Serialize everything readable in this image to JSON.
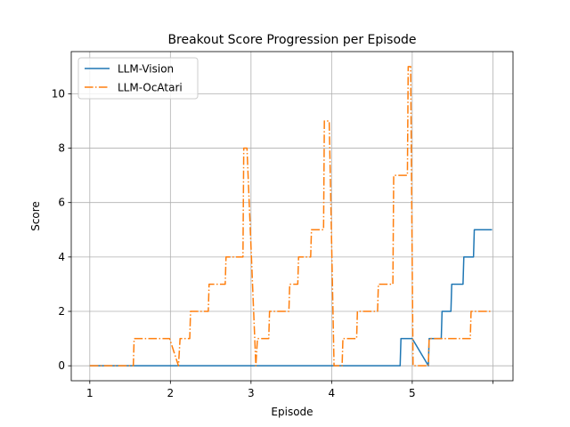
{
  "chart_data": {
    "type": "line",
    "title": "Breakout Score Progression per Episode",
    "xlabel": "Episode",
    "ylabel": "Score",
    "xlim": [
      0.77,
      6.25
    ],
    "ylim": [
      -0.55,
      11.55
    ],
    "x_ticks": [
      1,
      2,
      3,
      4,
      5,
      6
    ],
    "x_tick_labels": [
      "1",
      "2",
      "3",
      "4",
      "5",
      ""
    ],
    "y_ticks": [
      0,
      2,
      4,
      6,
      8,
      10
    ],
    "grid": true,
    "legend_position": "top-left",
    "series": [
      {
        "name": "LLM-Vision",
        "color": "#1f77b4",
        "style": "solid",
        "points": [
          [
            1.0,
            0
          ],
          [
            4.0,
            0
          ],
          [
            4.05,
            0
          ],
          [
            4.85,
            0
          ],
          [
            4.86,
            1
          ],
          [
            5.0,
            1
          ],
          [
            5.2,
            0
          ],
          [
            5.21,
            1
          ],
          [
            5.36,
            1
          ],
          [
            5.37,
            2
          ],
          [
            5.48,
            2
          ],
          [
            5.49,
            3
          ],
          [
            5.63,
            3
          ],
          [
            5.64,
            4
          ],
          [
            5.76,
            4
          ],
          [
            5.77,
            5
          ],
          [
            5.99,
            5
          ]
        ]
      },
      {
        "name": "LLM-OcAtari",
        "color": "#ff7f0e",
        "style": "dashdot",
        "points": [
          [
            1.0,
            0
          ],
          [
            1.54,
            0
          ],
          [
            1.55,
            1
          ],
          [
            1.99,
            1
          ],
          [
            2.1,
            0
          ],
          [
            2.12,
            1
          ],
          [
            2.24,
            1
          ],
          [
            2.25,
            2
          ],
          [
            2.47,
            2
          ],
          [
            2.48,
            3
          ],
          [
            2.68,
            3
          ],
          [
            2.69,
            4
          ],
          [
            2.9,
            4
          ],
          [
            2.91,
            8
          ],
          [
            2.95,
            8
          ],
          [
            3.06,
            0
          ],
          [
            3.08,
            1
          ],
          [
            3.22,
            1
          ],
          [
            3.23,
            2
          ],
          [
            3.47,
            2
          ],
          [
            3.48,
            3
          ],
          [
            3.58,
            3
          ],
          [
            3.59,
            4
          ],
          [
            3.74,
            4
          ],
          [
            3.75,
            5
          ],
          [
            3.9,
            5
          ],
          [
            3.91,
            9
          ],
          [
            3.97,
            9
          ],
          [
            4.03,
            0
          ],
          [
            4.13,
            0
          ],
          [
            4.14,
            1
          ],
          [
            4.31,
            1
          ],
          [
            4.32,
            2
          ],
          [
            4.57,
            2
          ],
          [
            4.58,
            3
          ],
          [
            4.76,
            3
          ],
          [
            4.77,
            7
          ],
          [
            4.94,
            7
          ],
          [
            4.95,
            11
          ],
          [
            4.98,
            11
          ],
          [
            5.01,
            0
          ],
          [
            5.2,
            0
          ],
          [
            5.21,
            1
          ],
          [
            5.72,
            1
          ],
          [
            5.73,
            2
          ],
          [
            5.98,
            2
          ]
        ]
      }
    ]
  }
}
